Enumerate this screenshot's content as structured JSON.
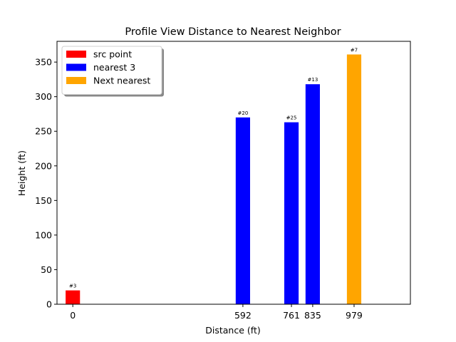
{
  "chart_data": {
    "type": "bar",
    "title": "Profile View Distance to Nearest Neighbor",
    "xlabel": "Distance (ft)",
    "ylabel": "Height (ft)",
    "xlim": [
      -55,
      1175
    ],
    "ylim": [
      0,
      380
    ],
    "x_ticks": [
      0,
      592,
      761,
      835,
      979
    ],
    "y_ticks": [
      0,
      50,
      100,
      150,
      200,
      250,
      300,
      350
    ],
    "bar_width": 50,
    "grid": false,
    "legend_position": "upper-left",
    "series": [
      {
        "name": "src point",
        "color": "#ff0000",
        "points": [
          {
            "x": 0,
            "y": 20,
            "label": "#3"
          }
        ]
      },
      {
        "name": "nearest 3",
        "color": "#0000ff",
        "points": [
          {
            "x": 592,
            "y": 270,
            "label": "#20"
          },
          {
            "x": 761,
            "y": 263,
            "label": "#25"
          },
          {
            "x": 835,
            "y": 318,
            "label": "#13"
          }
        ]
      },
      {
        "name": "Next nearest",
        "color": "#ffa500",
        "points": [
          {
            "x": 979,
            "y": 361,
            "label": "#7"
          }
        ]
      }
    ]
  }
}
